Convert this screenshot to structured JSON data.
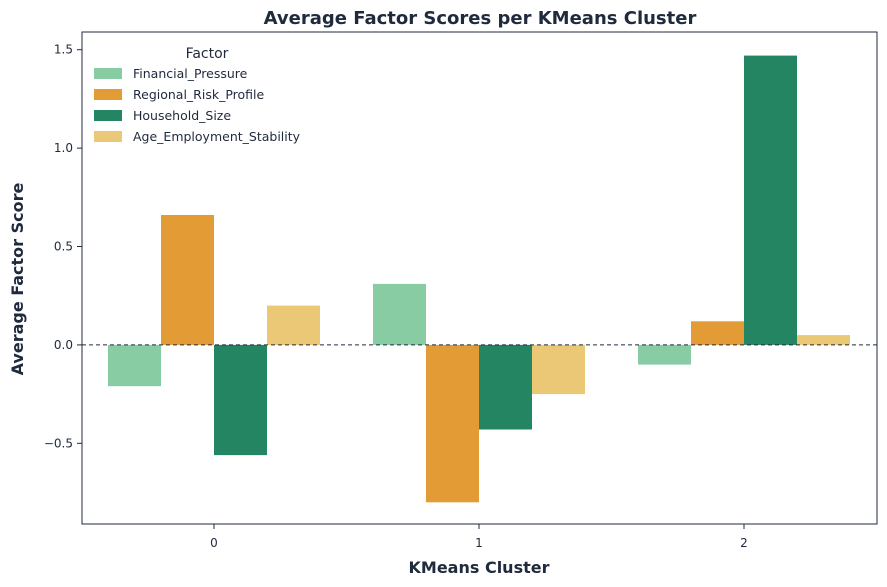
{
  "chart_data": {
    "type": "bar",
    "title": "Average Factor Scores per KMeans Cluster",
    "xlabel": "KMeans Cluster",
    "ylabel": "Average Factor Score",
    "categories": [
      "0",
      "1",
      "2"
    ],
    "ylim": [
      -0.91,
      1.59
    ],
    "yticks": [
      -0.5,
      0.0,
      0.5,
      1.0,
      1.5
    ],
    "ytick_labels": [
      "−0.5",
      "0.0",
      "0.5",
      "1.0",
      "1.5"
    ],
    "reference_line": {
      "y": 0.0,
      "style": "dashed"
    },
    "legend": {
      "title": "Factor",
      "position": "top-left"
    },
    "grid": false,
    "series": [
      {
        "name": "Financial_Pressure",
        "color": "#88cca4",
        "values": [
          -0.21,
          0.31,
          -0.1
        ]
      },
      {
        "name": "Regional_Risk_Profile",
        "color": "#e39b35",
        "values": [
          0.66,
          -0.8,
          0.12
        ]
      },
      {
        "name": "Household_Size",
        "color": "#248562",
        "values": [
          -0.56,
          -0.43,
          1.47
        ]
      },
      {
        "name": "Age_Employment_Stability",
        "color": "#ebc876",
        "values": [
          0.2,
          -0.25,
          0.05
        ]
      }
    ]
  }
}
